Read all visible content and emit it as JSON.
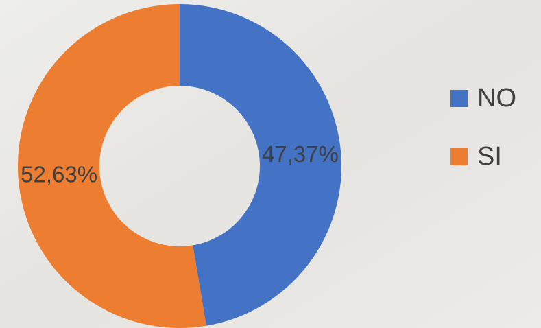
{
  "chart_data": {
    "type": "donut",
    "categories": [
      "NO",
      "SI"
    ],
    "values": [
      47.37,
      52.63
    ],
    "value_labels": [
      "47,37%",
      "52,63%"
    ],
    "colors": [
      "#4472c4",
      "#ed7d31"
    ],
    "legend": "right"
  }
}
